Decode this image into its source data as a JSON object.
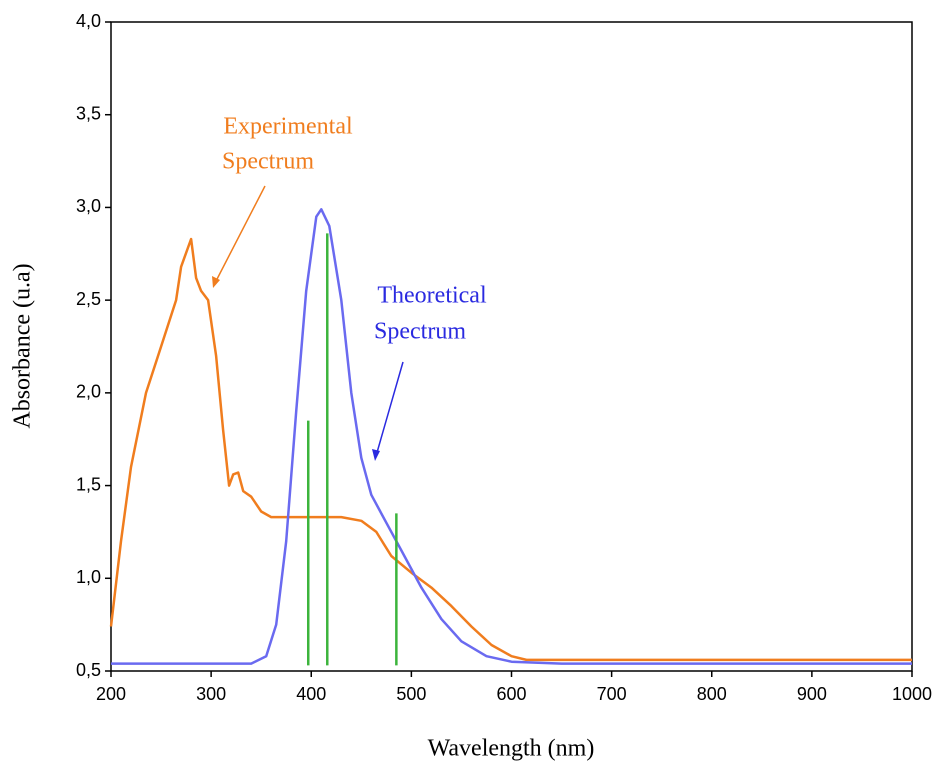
{
  "chart_data": {
    "type": "line",
    "x_label": "Wavelength (nm)",
    "y_label": "Absorbance (u.a)",
    "xlim": [
      200,
      1000
    ],
    "ylim": [
      0.5,
      4.0
    ],
    "xticks": [
      200,
      300,
      400,
      500,
      600,
      700,
      800,
      900,
      1000
    ],
    "yticks": [
      {
        "value": 0.5,
        "label": "0,5"
      },
      {
        "value": 1.0,
        "label": "1,0"
      },
      {
        "value": 1.5,
        "label": "1,5"
      },
      {
        "value": 2.0,
        "label": "2,0"
      },
      {
        "value": 2.5,
        "label": "2,5"
      },
      {
        "value": 3.0,
        "label": "3,0"
      },
      {
        "value": 3.5,
        "label": "3,5"
      },
      {
        "value": 4.0,
        "label": "4,0"
      }
    ],
    "series": [
      {
        "color": "#f07d1e",
        "x": [
          200,
          210,
          220,
          235,
          250,
          265,
          270,
          280,
          285,
          290,
          297,
          305,
          312,
          318,
          322,
          327,
          332,
          340,
          350,
          360,
          380,
          400,
          430,
          450,
          465,
          480,
          500,
          520,
          540,
          560,
          580,
          600,
          615,
          700,
          800,
          1000
        ],
        "values": [
          0.74,
          1.2,
          1.6,
          2.0,
          2.25,
          2.5,
          2.68,
          2.83,
          2.62,
          2.55,
          2.5,
          2.2,
          1.8,
          1.5,
          1.56,
          1.57,
          1.47,
          1.44,
          1.36,
          1.33,
          1.33,
          1.33,
          1.33,
          1.31,
          1.25,
          1.12,
          1.03,
          0.95,
          0.85,
          0.74,
          0.64,
          0.58,
          0.56,
          0.56,
          0.56,
          0.56
        ]
      },
      {
        "color": "#6a6af0",
        "x": [
          200,
          340,
          355,
          365,
          375,
          385,
          395,
          405,
          410,
          418,
          430,
          440,
          450,
          460,
          475,
          490,
          510,
          530,
          550,
          575,
          600,
          650,
          1000
        ],
        "values": [
          0.54,
          0.54,
          0.58,
          0.75,
          1.2,
          1.9,
          2.55,
          2.95,
          2.99,
          2.9,
          2.5,
          2.0,
          1.65,
          1.45,
          1.3,
          1.15,
          0.95,
          0.78,
          0.66,
          0.58,
          0.55,
          0.54,
          0.54
        ]
      }
    ],
    "sticks": {
      "color": "#3cb43c",
      "baseline": 0.53,
      "x": [
        397,
        416,
        485
      ],
      "values": [
        1.85,
        2.86,
        1.35
      ]
    },
    "annotations": [
      {
        "lines": [
          "Experimental",
          "Spectrum"
        ],
        "color": "#f07d1e"
      },
      {
        "lines": [
          "Theoretical",
          "Spectrum"
        ],
        "color": "#2a2ae0"
      }
    ]
  }
}
